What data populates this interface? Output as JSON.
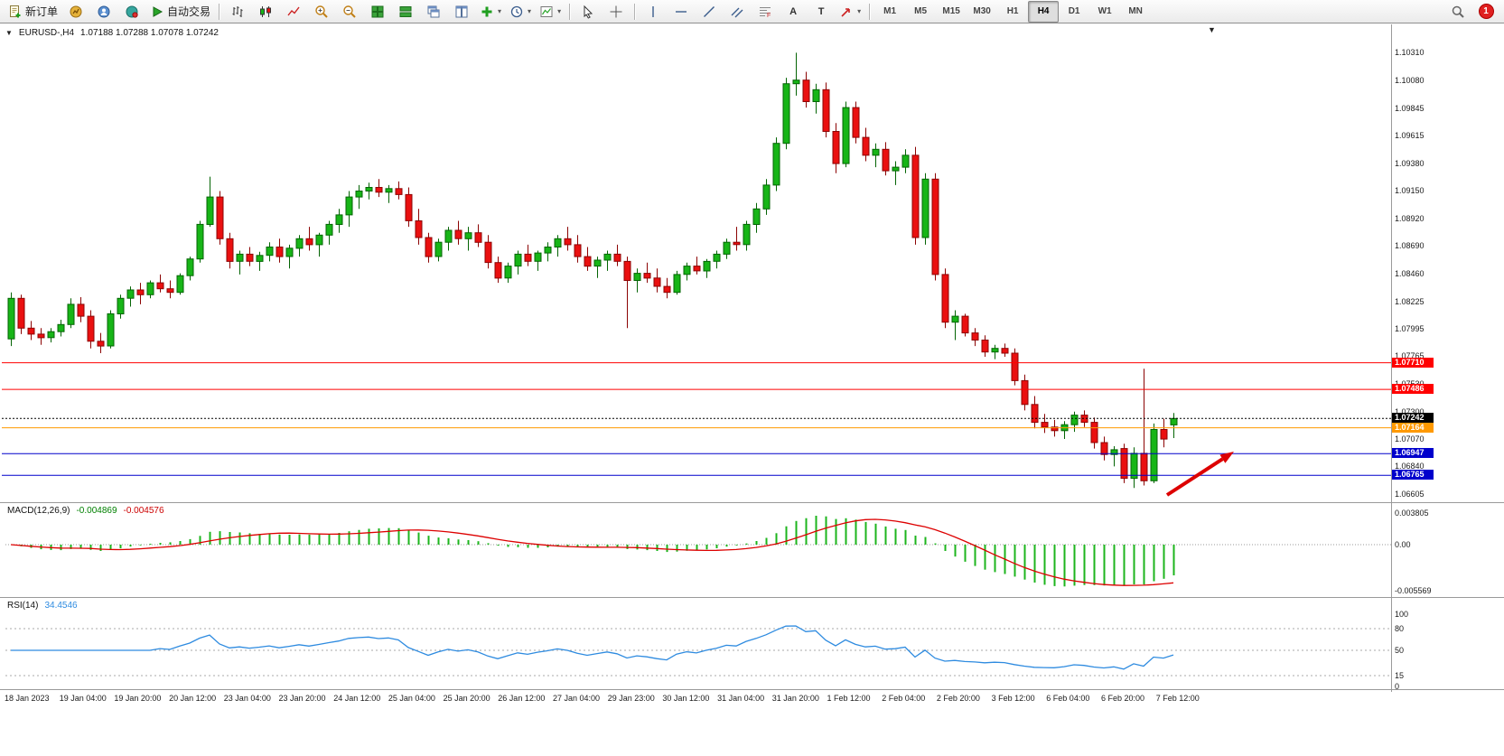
{
  "toolbar": {
    "new_order_label": "新订单",
    "auto_trading_label": "自动交易",
    "timeframes": [
      "M1",
      "M5",
      "M15",
      "M30",
      "H1",
      "H4",
      "D1",
      "W1",
      "MN"
    ],
    "active_timeframe": "H4",
    "notification_count": "1"
  },
  "chart": {
    "symbol_header": "EURUSD-,H4",
    "ohlc": "1.07188 1.07288 1.07078 1.07242"
  },
  "indicators": {
    "macd": {
      "label": "MACD(12,26,9)",
      "main_value": "-0.004869",
      "signal_value": "-0.004576"
    },
    "rsi": {
      "label": "RSI(14)",
      "value": "34.4546"
    }
  },
  "axes": {
    "price_labels": [
      "1.10310",
      "1.10080",
      "1.09845",
      "1.09615",
      "1.09380",
      "1.09150",
      "1.08920",
      "1.08690",
      "1.08460",
      "1.08225",
      "1.07995",
      "1.07765",
      "1.07530",
      "1.07300",
      "1.07070",
      "1.06840",
      "1.06605"
    ],
    "macd_labels": [
      "0.003805",
      "0.00",
      "-0.005569"
    ],
    "rsi_labels": [
      "100",
      "80",
      "50",
      "15",
      "0"
    ],
    "time_labels": [
      "18 Jan 2023",
      "19 Jan 04:00",
      "19 Jan 20:00",
      "20 Jan 12:00",
      "23 Jan 04:00",
      "23 Jan 20:00",
      "24 Jan 12:00",
      "25 Jan 04:00",
      "25 Jan 20:00",
      "26 Jan 12:00",
      "27 Jan 04:00",
      "29 Jan 23:00",
      "30 Jan 12:00",
      "31 Jan 04:00",
      "31 Jan 20:00",
      "1 Feb 12:00",
      "2 Feb 04:00",
      "2 Feb 20:00",
      "3 Feb 12:00",
      "6 Feb 04:00",
      "6 Feb 20:00",
      "7 Feb 12:00"
    ]
  },
  "price_lines": [
    {
      "price": 1.0771,
      "label": "1.07710",
      "color": "#ff0000",
      "style": "solid"
    },
    {
      "price": 1.07486,
      "label": "1.07486",
      "color": "#ff0000",
      "style": "solid"
    },
    {
      "price": 1.07242,
      "label": "1.07242",
      "color": "#000000",
      "style": "dotted",
      "role": "current-price"
    },
    {
      "price": 1.07164,
      "label": "1.07164",
      "color": "#ff9900",
      "style": "solid"
    },
    {
      "price": 1.06947,
      "label": "1.06947",
      "color": "#0000cc",
      "style": "solid"
    },
    {
      "price": 1.06765,
      "label": "1.06765",
      "color": "#0000cc",
      "style": "solid"
    }
  ],
  "chart_data": {
    "type": "candlestick",
    "symbol": "EURUSD-",
    "timeframe": "H4",
    "y_range_main": [
      1.0654,
      1.1054
    ],
    "macd_params": [
      12,
      26,
      9
    ],
    "rsi_period": 14,
    "colors": {
      "up": "#17b517",
      "up_border": "#046404",
      "down": "#ea1010",
      "down_border": "#8c0404",
      "macd": "#1db51d",
      "signal": "#dd0000",
      "rsi": "#2e8be0"
    },
    "candles": [
      [
        1.0791,
        1.083,
        1.0785,
        1.0825
      ],
      [
        1.0825,
        1.0828,
        1.0795,
        1.08
      ],
      [
        1.08,
        1.0806,
        1.079,
        1.0795
      ],
      [
        1.0795,
        1.08,
        1.0786,
        1.0792
      ],
      [
        1.0792,
        1.08,
        1.0788,
        1.0797
      ],
      [
        1.0797,
        1.0807,
        1.0793,
        1.0803
      ],
      [
        1.0803,
        1.0825,
        1.08,
        1.082
      ],
      [
        1.082,
        1.0826,
        1.0805,
        1.081
      ],
      [
        1.081,
        1.0815,
        1.0783,
        1.0789
      ],
      [
        1.0789,
        1.0796,
        1.0779,
        1.0785
      ],
      [
        1.0785,
        1.0815,
        1.0783,
        1.0812
      ],
      [
        1.0812,
        1.0828,
        1.0808,
        1.0825
      ],
      [
        1.0825,
        1.0835,
        1.0818,
        1.0832
      ],
      [
        1.0832,
        1.0838,
        1.082,
        1.0828
      ],
      [
        1.0828,
        1.084,
        1.0825,
        1.0838
      ],
      [
        1.0838,
        1.0845,
        1.083,
        1.0833
      ],
      [
        1.0833,
        1.084,
        1.0825,
        1.083
      ],
      [
        1.083,
        1.0846,
        1.0828,
        1.0844
      ],
      [
        1.0844,
        1.086,
        1.084,
        1.0858
      ],
      [
        1.0858,
        1.089,
        1.0855,
        1.0887
      ],
      [
        1.0887,
        1.0927,
        1.0885,
        1.091
      ],
      [
        1.091,
        1.0915,
        1.087,
        1.0875
      ],
      [
        1.0875,
        1.088,
        1.085,
        1.0856
      ],
      [
        1.0856,
        1.0865,
        1.0845,
        1.0862
      ],
      [
        1.0862,
        1.0868,
        1.0852,
        1.0856
      ],
      [
        1.0856,
        1.0864,
        1.0848,
        1.0861
      ],
      [
        1.0861,
        1.0872,
        1.0856,
        1.0868
      ],
      [
        1.0868,
        1.0875,
        1.0855,
        1.086
      ],
      [
        1.086,
        1.087,
        1.085,
        1.0867
      ],
      [
        1.0867,
        1.0878,
        1.086,
        1.0875
      ],
      [
        1.0875,
        1.0885,
        1.0865,
        1.087
      ],
      [
        1.087,
        1.088,
        1.086,
        1.0878
      ],
      [
        1.0878,
        1.089,
        1.087,
        1.0887
      ],
      [
        1.0887,
        1.09,
        1.088,
        1.0895
      ],
      [
        1.0895,
        1.0915,
        1.0885,
        1.091
      ],
      [
        1.091,
        1.092,
        1.09,
        1.0915
      ],
      [
        1.0915,
        1.0922,
        1.0908,
        1.0918
      ],
      [
        1.0918,
        1.0925,
        1.091,
        1.0914
      ],
      [
        1.0914,
        1.092,
        1.0905,
        1.0917
      ],
      [
        1.0917,
        1.0923,
        1.0908,
        1.0912
      ],
      [
        1.0912,
        1.0918,
        1.0885,
        1.089
      ],
      [
        1.089,
        1.09,
        1.087,
        1.0876
      ],
      [
        1.0876,
        1.088,
        1.0855,
        1.086
      ],
      [
        1.086,
        1.0875,
        1.0856,
        1.0872
      ],
      [
        1.0872,
        1.0885,
        1.0865,
        1.0882
      ],
      [
        1.0882,
        1.089,
        1.087,
        1.0875
      ],
      [
        1.0875,
        1.0885,
        1.0865,
        1.088
      ],
      [
        1.088,
        1.0887,
        1.0868,
        1.0872
      ],
      [
        1.0872,
        1.0878,
        1.085,
        1.0855
      ],
      [
        1.0855,
        1.086,
        1.0838,
        1.0842
      ],
      [
        1.0842,
        1.0855,
        1.0838,
        1.0852
      ],
      [
        1.0852,
        1.0865,
        1.0845,
        1.0862
      ],
      [
        1.0862,
        1.087,
        1.0852,
        1.0856
      ],
      [
        1.0856,
        1.0865,
        1.0848,
        1.0863
      ],
      [
        1.0863,
        1.0872,
        1.0856,
        1.0868
      ],
      [
        1.0868,
        1.0878,
        1.086,
        1.0875
      ],
      [
        1.0875,
        1.0885,
        1.0865,
        1.087
      ],
      [
        1.087,
        1.0878,
        1.0855,
        1.086
      ],
      [
        1.086,
        1.0868,
        1.0848,
        1.0852
      ],
      [
        1.0852,
        1.086,
        1.0842,
        1.0857
      ],
      [
        1.0857,
        1.0865,
        1.0848,
        1.0862
      ],
      [
        1.0862,
        1.087,
        1.0852,
        1.0856
      ],
      [
        1.0856,
        1.086,
        1.08,
        1.084
      ],
      [
        1.084,
        1.085,
        1.083,
        1.0846
      ],
      [
        1.0846,
        1.0855,
        1.0838,
        1.0842
      ],
      [
        1.0842,
        1.085,
        1.083,
        1.0835
      ],
      [
        1.0835,
        1.0842,
        1.0825,
        1.083
      ],
      [
        1.083,
        1.0848,
        1.0828,
        1.0845
      ],
      [
        1.0845,
        1.0855,
        1.084,
        1.0852
      ],
      [
        1.0852,
        1.086,
        1.0845,
        1.0848
      ],
      [
        1.0848,
        1.0858,
        1.0842,
        1.0856
      ],
      [
        1.0856,
        1.0865,
        1.085,
        1.0862
      ],
      [
        1.0862,
        1.0875,
        1.0858,
        1.0872
      ],
      [
        1.0872,
        1.0885,
        1.0865,
        1.087
      ],
      [
        1.087,
        1.089,
        1.0865,
        1.0887
      ],
      [
        1.0887,
        1.0905,
        1.088,
        1.09
      ],
      [
        1.09,
        1.0925,
        1.0895,
        1.092
      ],
      [
        1.092,
        1.096,
        1.0915,
        1.0955
      ],
      [
        1.0955,
        1.101,
        1.095,
        1.1005
      ],
      [
        1.1005,
        1.1031,
        1.0995,
        1.1008
      ],
      [
        1.1008,
        1.1015,
        1.0985,
        1.099
      ],
      [
        1.099,
        1.1005,
        1.098,
        1.1
      ],
      [
        1.1,
        1.1006,
        1.096,
        1.0965
      ],
      [
        1.0965,
        1.0972,
        1.093,
        1.0938
      ],
      [
        1.0938,
        1.099,
        1.0935,
        1.0985
      ],
      [
        1.0985,
        1.099,
        1.0955,
        1.096
      ],
      [
        1.096,
        1.0968,
        1.094,
        1.0945
      ],
      [
        1.0945,
        1.0955,
        1.0935,
        1.095
      ],
      [
        1.095,
        1.0956,
        1.0928,
        1.0932
      ],
      [
        1.0932,
        1.094,
        1.092,
        1.0935
      ],
      [
        1.0935,
        1.095,
        1.093,
        1.0945
      ],
      [
        1.0945,
        1.0952,
        1.087,
        1.0876
      ],
      [
        1.0876,
        1.093,
        1.087,
        1.0925
      ],
      [
        1.0925,
        1.093,
        1.084,
        1.0845
      ],
      [
        1.0845,
        1.085,
        1.08,
        1.0805
      ],
      [
        1.0805,
        1.0815,
        1.079,
        1.081
      ],
      [
        1.081,
        1.0812,
        1.0793,
        1.0796
      ],
      [
        1.0796,
        1.08,
        1.0785,
        1.079
      ],
      [
        1.079,
        1.0794,
        1.0776,
        1.078
      ],
      [
        1.078,
        1.0786,
        1.0774,
        1.0783
      ],
      [
        1.0783,
        1.0787,
        1.0776,
        1.0779
      ],
      [
        1.0779,
        1.0783,
        1.0752,
        1.0756
      ],
      [
        1.0756,
        1.0761,
        1.0731,
        1.0736
      ],
      [
        1.0736,
        1.0743,
        1.0716,
        1.0721
      ],
      [
        1.0721,
        1.0728,
        1.0712,
        1.0717
      ],
      [
        1.0717,
        1.0723,
        1.0709,
        1.0714
      ],
      [
        1.0714,
        1.0722,
        1.0707,
        1.0719
      ],
      [
        1.0719,
        1.073,
        1.0713,
        1.0727
      ],
      [
        1.0727,
        1.0731,
        1.0717,
        1.0721
      ],
      [
        1.0721,
        1.0725,
        1.0699,
        1.0704
      ],
      [
        1.0704,
        1.0709,
        1.0689,
        1.0694
      ],
      [
        1.0694,
        1.0701,
        1.0684,
        1.0698
      ],
      [
        1.0699,
        1.0703,
        1.067,
        1.0674
      ],
      [
        1.0674,
        1.07,
        1.0666,
        1.0695
      ],
      [
        1.0695,
        1.0766,
        1.0668,
        1.0672
      ],
      [
        1.0672,
        1.072,
        1.067,
        1.0715
      ],
      [
        1.0715,
        1.0724,
        1.07,
        1.0707
      ],
      [
        1.07188,
        1.07288,
        1.07078,
        1.07242
      ]
    ],
    "annotations": [
      {
        "type": "arrow",
        "from": [
          1292,
          548
        ],
        "to": [
          1366,
          500
        ],
        "color": "#dd0000"
      }
    ]
  }
}
